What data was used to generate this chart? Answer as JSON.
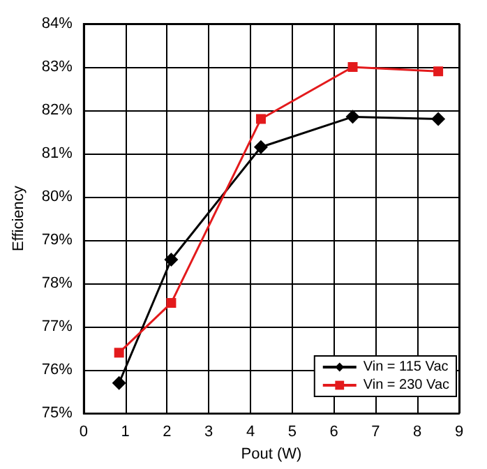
{
  "chart_data": {
    "type": "line",
    "xlabel": "Pout (W)",
    "ylabel": "Efficiency",
    "xlim": [
      0,
      9
    ],
    "xticks": [
      0,
      1,
      2,
      3,
      4,
      5,
      6,
      7,
      8,
      9
    ],
    "ylim": [
      75,
      84
    ],
    "yticks": [
      {
        "value": 75,
        "label": "75%"
      },
      {
        "value": 76,
        "label": "76%"
      },
      {
        "value": 77,
        "label": "77%"
      },
      {
        "value": 78,
        "label": "78%"
      },
      {
        "value": 79,
        "label": "79%"
      },
      {
        "value": 80,
        "label": "80%"
      },
      {
        "value": 81,
        "label": "81%"
      },
      {
        "value": 82,
        "label": "82%"
      },
      {
        "value": 83,
        "label": "83%"
      },
      {
        "value": 84,
        "label": "84%"
      }
    ],
    "x": [
      0.85,
      2.1,
      4.25,
      6.45,
      8.5
    ],
    "series": [
      {
        "name": "Vin = 115 Vac",
        "color": "#000000",
        "marker": "diamond",
        "values": [
          75.7,
          78.55,
          81.15,
          81.85,
          81.8
        ]
      },
      {
        "name": "Vin = 230 Vac",
        "color": "#e31a1c",
        "marker": "square",
        "values": [
          76.4,
          77.55,
          81.8,
          83.0,
          82.9
        ]
      }
    ],
    "grid": true,
    "legend": "bottom right",
    "line_style": "solid"
  }
}
